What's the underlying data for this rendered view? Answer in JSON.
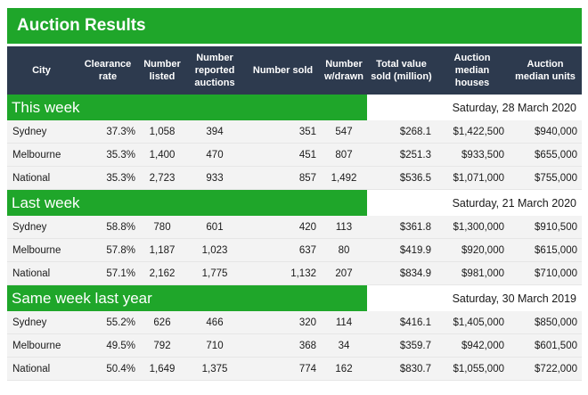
{
  "title": "Auction Results",
  "columns": [
    "City",
    "Clearance rate",
    "Number listed",
    "Number reported auctions",
    "Number sold",
    "Number w/drawn",
    "Total value sold (million)",
    "Auction median houses",
    "Auction median units"
  ],
  "sections": [
    {
      "label": "This week",
      "date": "Saturday, 28 March 2020",
      "rows": [
        [
          "Sydney",
          "37.3%",
          "1,058",
          "394",
          "351",
          "547",
          "$268.1",
          "$1,422,500",
          "$940,000"
        ],
        [
          "Melbourne",
          "35.3%",
          "1,400",
          "470",
          "451",
          "807",
          "$251.3",
          "$933,500",
          "$655,000"
        ],
        [
          "National",
          "35.3%",
          "2,723",
          "933",
          "857",
          "1,492",
          "$536.5",
          "$1,071,000",
          "$755,000"
        ]
      ]
    },
    {
      "label": "Last week",
      "date": "Saturday, 21 March 2020",
      "rows": [
        [
          "Sydney",
          "58.8%",
          "780",
          "601",
          "420",
          "113",
          "$361.8",
          "$1,300,000",
          "$910,500"
        ],
        [
          "Melbourne",
          "57.8%",
          "1,187",
          "1,023",
          "637",
          "80",
          "$419.9",
          "$920,000",
          "$615,000"
        ],
        [
          "National",
          "57.1%",
          "2,162",
          "1,775",
          "1,132",
          "207",
          "$834.9",
          "$981,000",
          "$710,000"
        ]
      ]
    },
    {
      "label": "Same week last year",
      "date": "Saturday, 30 March 2019",
      "rows": [
        [
          "Sydney",
          "55.2%",
          "626",
          "466",
          "320",
          "114",
          "$416.1",
          "$1,405,000",
          "$850,000"
        ],
        [
          "Melbourne",
          "49.5%",
          "792",
          "710",
          "368",
          "34",
          "$359.7",
          "$942,000",
          "$601,500"
        ],
        [
          "National",
          "50.4%",
          "1,649",
          "1,375",
          "774",
          "162",
          "$830.7",
          "$1,055,000",
          "$722,000"
        ]
      ]
    }
  ]
}
